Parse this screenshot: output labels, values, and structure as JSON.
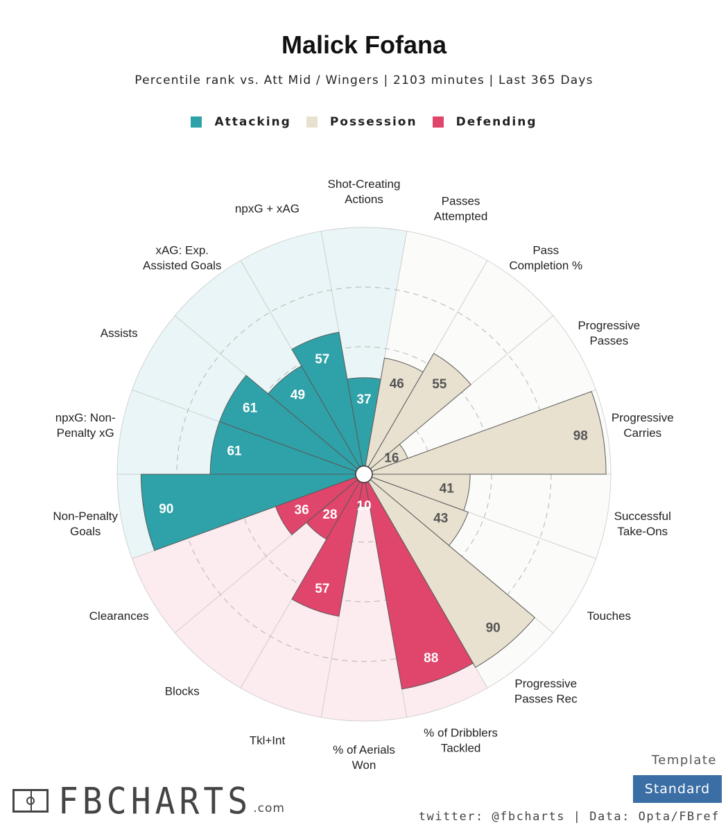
{
  "header": {
    "title": "Malick Fofana",
    "subtitle": "Percentile rank vs. Att Mid / Wingers | 2103 minutes | Last 365 Days"
  },
  "legend": [
    {
      "label": "Attacking",
      "color": "#2ea2a8"
    },
    {
      "label": "Possession",
      "color": "#e8e1d0"
    },
    {
      "label": "Defending",
      "color": "#e0456b"
    }
  ],
  "chart_data": {
    "type": "polar-bar",
    "title": "Malick Fofana",
    "range": [
      0,
      100
    ],
    "categories": [
      {
        "label": "Shot-Creating\nActions",
        "value": 37,
        "group": "Attacking"
      },
      {
        "label": "Passes\nAttempted",
        "value": 46,
        "group": "Possession"
      },
      {
        "label": "Pass\nCompletion %",
        "value": 55,
        "group": "Possession"
      },
      {
        "label": "Progressive\nPasses",
        "value": 16,
        "group": "Possession"
      },
      {
        "label": "Progressive\nCarries",
        "value": 98,
        "group": "Possession"
      },
      {
        "label": "Successful\nTake-Ons",
        "value": 41,
        "group": "Possession"
      },
      {
        "label": "Touches",
        "value": 43,
        "group": "Possession"
      },
      {
        "label": "Progressive\nPasses Rec",
        "value": 90,
        "group": "Possession"
      },
      {
        "label": "% of Dribblers\nTackled",
        "value": 88,
        "group": "Defending"
      },
      {
        "label": "% of Aerials\nWon",
        "value": 10,
        "group": "Defending"
      },
      {
        "label": "Tkl+Int",
        "value": 57,
        "group": "Defending"
      },
      {
        "label": "Blocks",
        "value": 28,
        "group": "Defending"
      },
      {
        "label": "Clearances",
        "value": 36,
        "group": "Defending"
      },
      {
        "label": "Non-Penalty\nGoals",
        "value": 90,
        "group": "Attacking"
      },
      {
        "label": "npxG: Non-\nPenalty xG",
        "value": 61,
        "group": "Attacking"
      },
      {
        "label": "Assists",
        "value": 61,
        "group": "Attacking"
      },
      {
        "label": "xAG: Exp.\nAssisted Goals",
        "value": 49,
        "group": "Attacking"
      },
      {
        "label": "npxG + xAG",
        "value": 57,
        "group": "Attacking"
      }
    ],
    "group_colors": {
      "Attacking": {
        "bar": "#2ea2a8",
        "bg": "#e9f5f6",
        "text": "#ffffff"
      },
      "Possession": {
        "bar": "#e8e1d0",
        "bg": "#fbfbf9",
        "text": "#555555"
      },
      "Defending": {
        "bar": "#e0456b",
        "bg": "#fcebef",
        "text": "#ffffff"
      }
    },
    "grid": "dashed rings at 25, 50, 75"
  },
  "footer": {
    "logo_text": "FBCHARTS",
    "logo_suffix": ".com",
    "template_label": "Template",
    "template_value": "Standard",
    "credits": "twitter: @fbcharts | Data: Opta/FBref"
  }
}
